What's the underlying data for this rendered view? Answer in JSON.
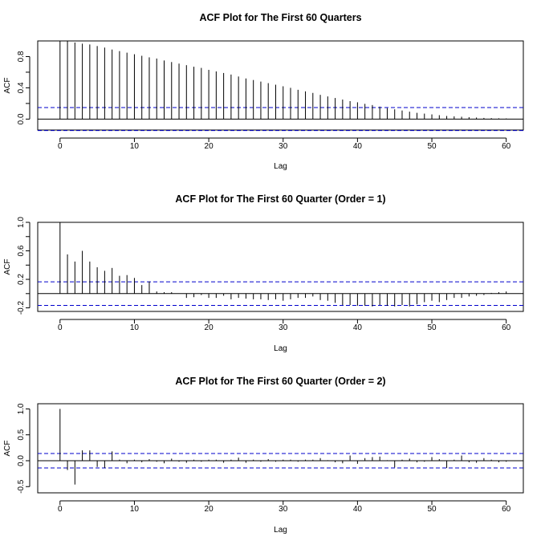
{
  "figure": {
    "background": "#ffffff"
  },
  "chart_data": [
    {
      "type": "bar",
      "title": "ACF Plot for The First 60 Quarters",
      "xlabel": "Lag",
      "ylabel": "ACF",
      "xlim": [
        -3,
        62.3
      ],
      "ylim": [
        -0.14,
        1.0
      ],
      "xticks": [
        0,
        10,
        20,
        30,
        40,
        50,
        60
      ],
      "yticks": [
        0.0,
        0.4,
        0.8
      ],
      "yticks_minor": [
        0.2,
        0.6
      ],
      "ci": 0.147,
      "x": [
        0,
        1,
        2,
        3,
        4,
        5,
        6,
        7,
        8,
        9,
        10,
        11,
        12,
        13,
        14,
        15,
        16,
        17,
        18,
        19,
        20,
        21,
        22,
        23,
        24,
        25,
        26,
        27,
        28,
        29,
        30,
        31,
        32,
        33,
        34,
        35,
        36,
        37,
        38,
        39,
        40,
        41,
        42,
        43,
        44,
        45,
        46,
        47,
        48,
        49,
        50,
        51,
        52,
        53,
        54,
        55,
        56,
        57,
        58,
        59,
        60
      ],
      "values": [
        1.0,
        0.995,
        0.98,
        0.965,
        0.955,
        0.935,
        0.915,
        0.89,
        0.87,
        0.85,
        0.83,
        0.81,
        0.79,
        0.775,
        0.75,
        0.73,
        0.71,
        0.69,
        0.67,
        0.655,
        0.63,
        0.61,
        0.59,
        0.57,
        0.545,
        0.52,
        0.5,
        0.48,
        0.46,
        0.44,
        0.42,
        0.4,
        0.375,
        0.355,
        0.335,
        0.31,
        0.29,
        0.27,
        0.25,
        0.23,
        0.215,
        0.195,
        0.18,
        0.16,
        0.14,
        0.125,
        0.11,
        0.095,
        0.08,
        0.07,
        0.06,
        0.05,
        0.04,
        0.035,
        0.03,
        0.025,
        0.02,
        0.015,
        0.012,
        0.01,
        0.008
      ],
      "colors": {
        "bars": "#000000",
        "ci": "#0000cc",
        "axis": "#000000"
      }
    },
    {
      "type": "bar",
      "title": "ACF Plot for The First 60 Quarter (Order = 1)",
      "xlabel": "Lag",
      "ylabel": "ACF",
      "xlim": [
        -3,
        62.3
      ],
      "ylim": [
        -0.25,
        1.0
      ],
      "xticks": [
        0,
        10,
        20,
        30,
        40,
        50,
        60
      ],
      "yticks": [
        -0.2,
        0.2,
        0.6,
        1.0
      ],
      "yticks_minor": [
        0.0,
        0.4,
        0.8
      ],
      "ci": 0.165,
      "x": [
        0,
        1,
        2,
        3,
        4,
        5,
        6,
        7,
        8,
        9,
        10,
        11,
        12,
        13,
        14,
        15,
        16,
        17,
        18,
        19,
        20,
        21,
        22,
        23,
        24,
        25,
        26,
        27,
        28,
        29,
        30,
        31,
        32,
        33,
        34,
        35,
        36,
        37,
        38,
        39,
        40,
        41,
        42,
        43,
        44,
        45,
        46,
        47,
        48,
        49,
        50,
        51,
        52,
        53,
        54,
        55,
        56,
        57,
        58,
        59,
        60
      ],
      "values": [
        1.0,
        0.55,
        0.45,
        0.6,
        0.45,
        0.37,
        0.32,
        0.36,
        0.25,
        0.26,
        0.22,
        0.12,
        0.17,
        0.03,
        0.02,
        0.02,
        0.0,
        -0.06,
        -0.05,
        -0.02,
        -0.06,
        -0.06,
        -0.03,
        -0.08,
        -0.06,
        -0.07,
        -0.08,
        -0.08,
        -0.09,
        -0.08,
        -0.1,
        -0.08,
        -0.06,
        -0.06,
        -0.04,
        -0.09,
        -0.1,
        -0.13,
        -0.16,
        -0.16,
        -0.17,
        -0.17,
        -0.18,
        -0.16,
        -0.17,
        -0.18,
        -0.16,
        -0.18,
        -0.15,
        -0.12,
        -0.1,
        -0.12,
        -0.09,
        -0.06,
        -0.06,
        -0.04,
        -0.03,
        -0.02,
        0.01,
        0.02,
        0.03
      ],
      "colors": {
        "bars": "#000000",
        "ci": "#0000cc",
        "axis": "#000000"
      }
    },
    {
      "type": "bar",
      "title": "ACF Plot for The First 60 Quarter (Order = 2)",
      "xlabel": "Lag",
      "ylabel": "ACF",
      "xlim": [
        -3,
        62.3
      ],
      "ylim": [
        -0.62,
        1.1
      ],
      "xticks": [
        0,
        10,
        20,
        30,
        40,
        50,
        60
      ],
      "yticks": [
        -0.5,
        0.0,
        0.5,
        1.0
      ],
      "ci": 0.14,
      "x": [
        0,
        1,
        2,
        3,
        4,
        5,
        6,
        7,
        8,
        9,
        10,
        11,
        12,
        13,
        14,
        15,
        16,
        17,
        18,
        19,
        20,
        21,
        22,
        23,
        24,
        25,
        26,
        27,
        28,
        29,
        30,
        31,
        32,
        33,
        34,
        35,
        36,
        37,
        38,
        39,
        40,
        41,
        42,
        43,
        44,
        45,
        46,
        47,
        48,
        49,
        50,
        51,
        52,
        53,
        54,
        55,
        56,
        57,
        58,
        59,
        60
      ],
      "values": [
        1.0,
        -0.18,
        -0.46,
        0.2,
        0.2,
        -0.12,
        -0.14,
        0.18,
        0.02,
        -0.05,
        0.02,
        -0.03,
        0.03,
        -0.02,
        -0.05,
        0.04,
        -0.02,
        -0.04,
        0.02,
        -0.02,
        0.02,
        0.02,
        -0.04,
        0.02,
        0.06,
        -0.04,
        0.02,
        -0.02,
        0.03,
        -0.02,
        0.02,
        0.02,
        -0.02,
        0.02,
        0.02,
        0.05,
        0.01,
        -0.03,
        -0.05,
        0.1,
        -0.06,
        0.05,
        0.07,
        0.08,
        0.01,
        -0.13,
        0.02,
        0.04,
        -0.03,
        -0.02,
        0.07,
        0.03,
        -0.14,
        0.02,
        0.1,
        -0.03,
        -0.04,
        0.05,
        0.02,
        -0.03,
        -0.02
      ],
      "colors": {
        "bars": "#000000",
        "ci": "#0000cc",
        "axis": "#000000"
      }
    }
  ]
}
